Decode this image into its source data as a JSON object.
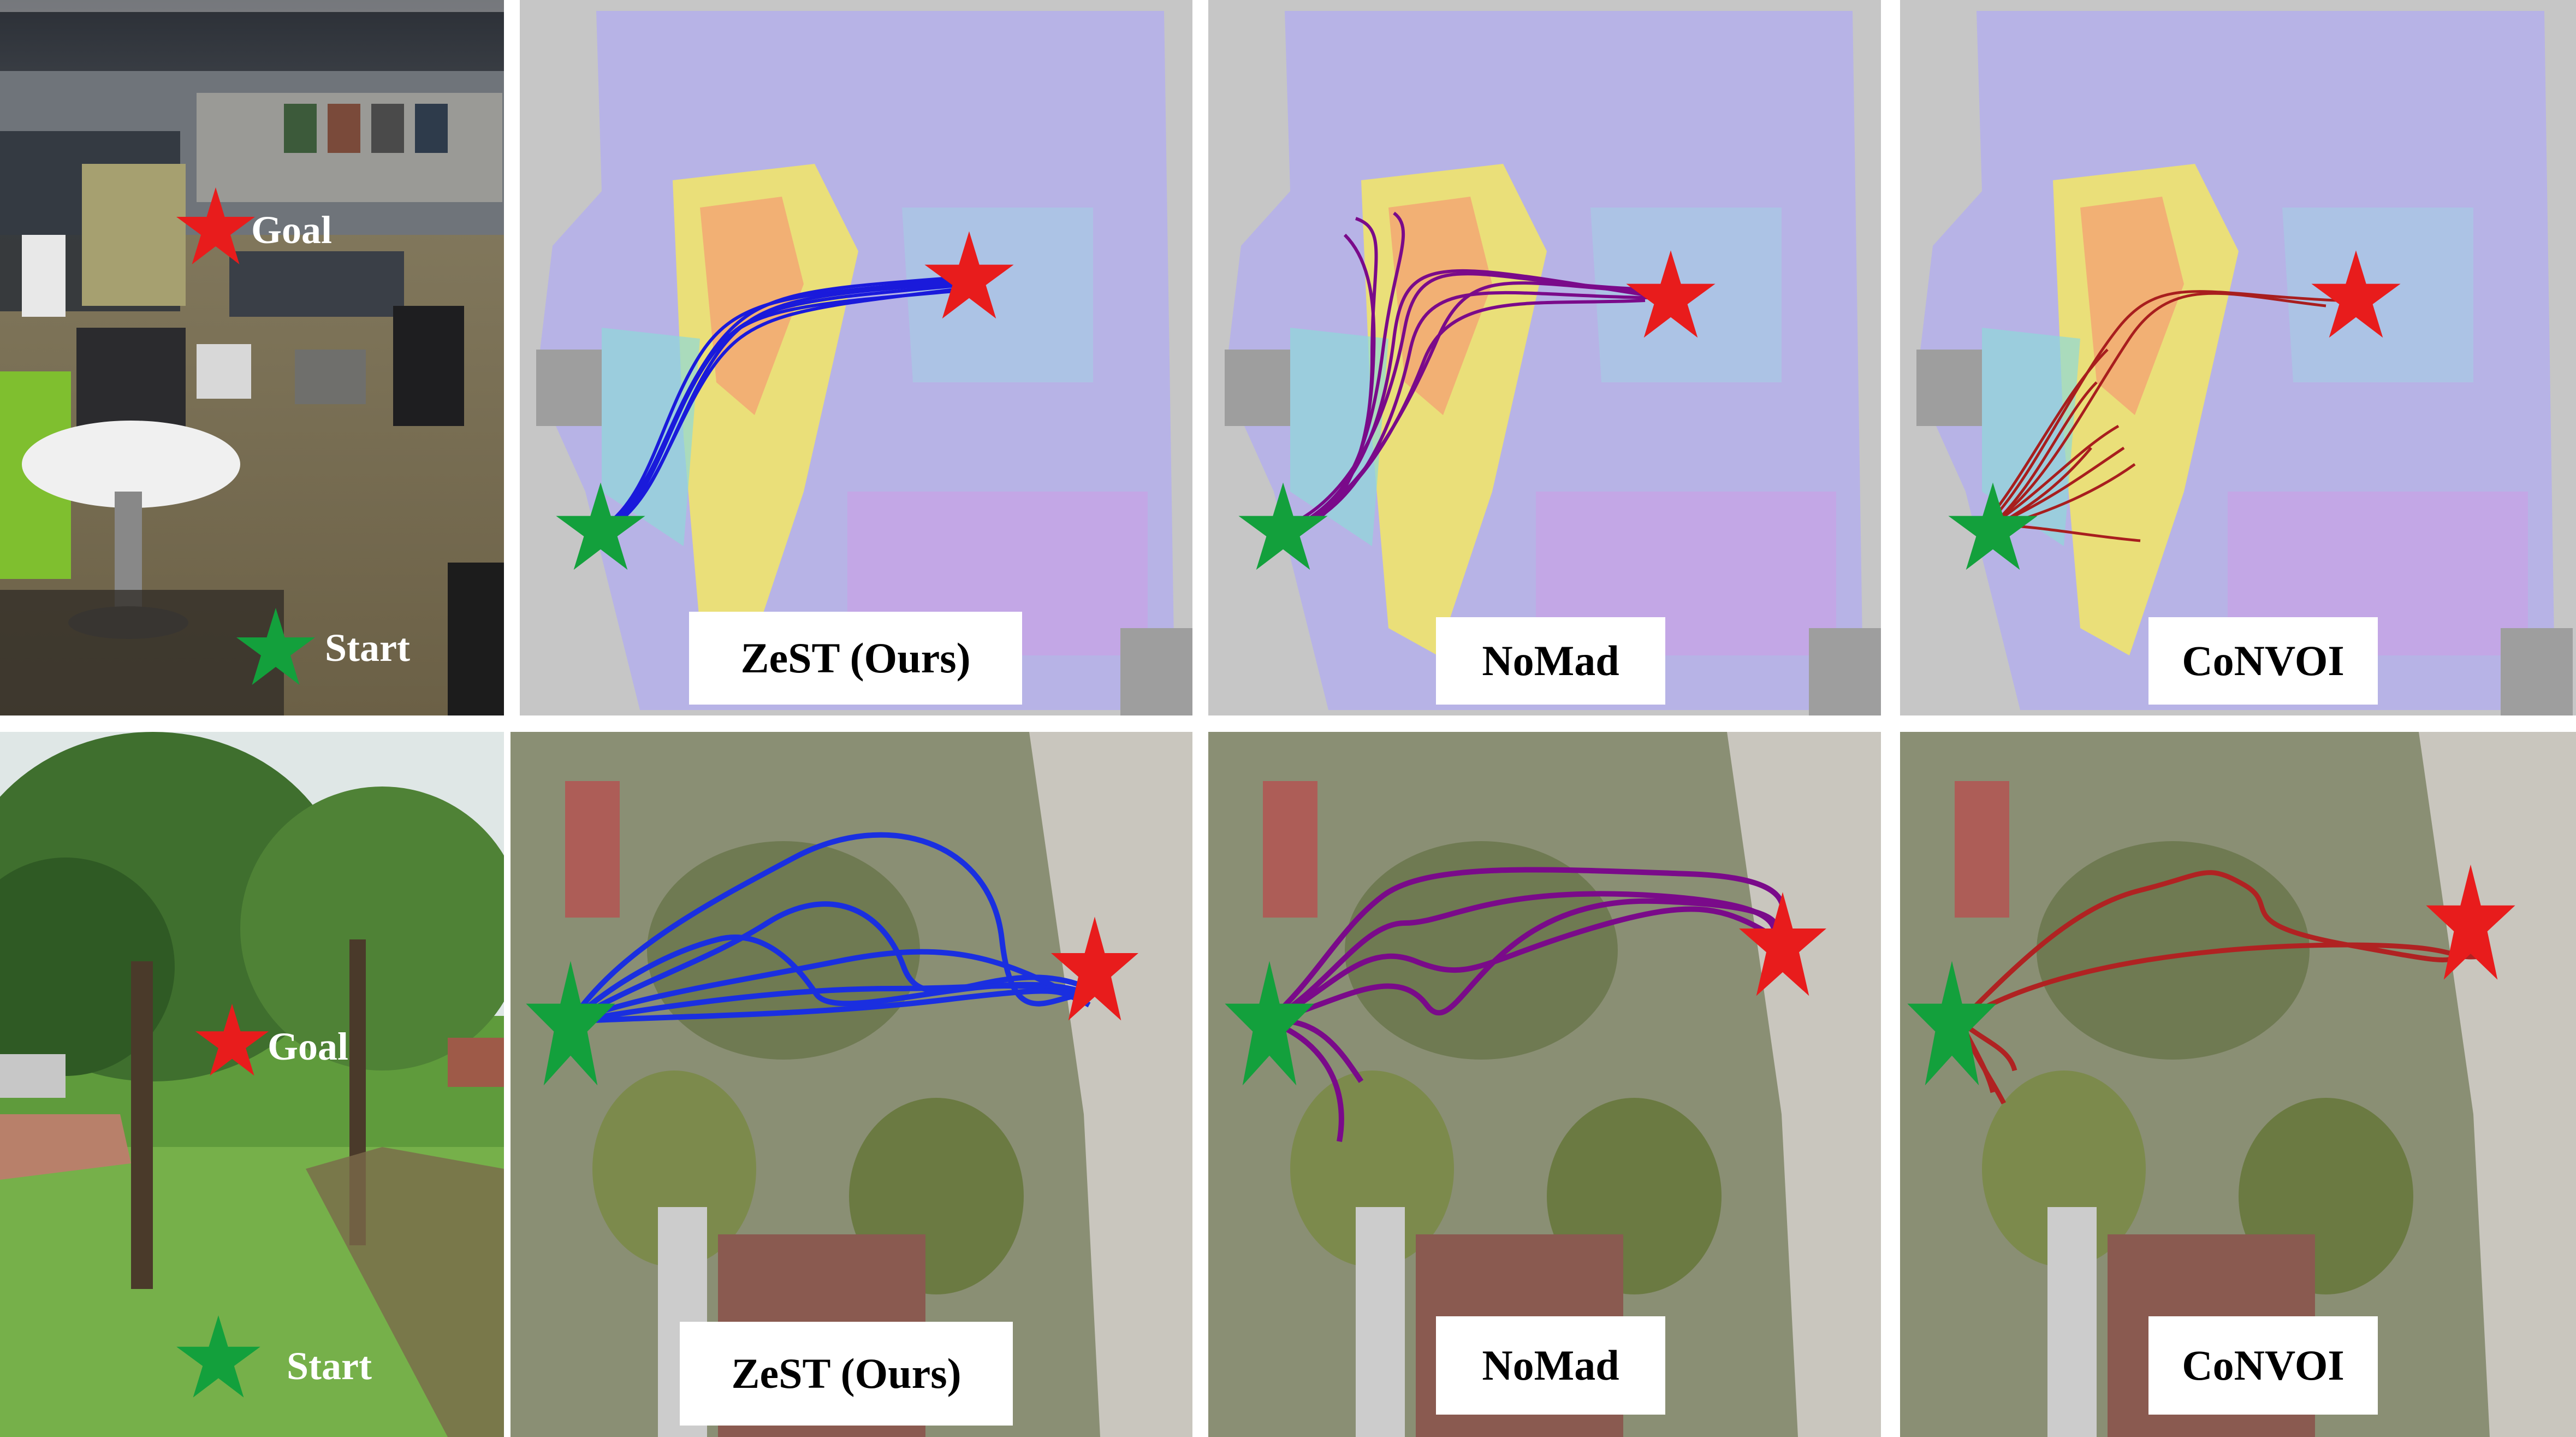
{
  "figure": {
    "rows": [
      {
        "scene": {
          "goal_label": "Goal",
          "start_label": "Start",
          "goal_label_color": "#ffffff",
          "start_label_color": "#ffffff"
        },
        "methods": [
          {
            "label": "ZeST (Ours)",
            "path_color": "#1a1adb"
          },
          {
            "label": "NoMad",
            "path_color": "#7a0a8a"
          },
          {
            "label": "CoNVOI",
            "path_color": "#a81e1e"
          }
        ]
      },
      {
        "scene": {
          "goal_label": "Goal",
          "start_label": "Start",
          "goal_label_color": "#ffffff",
          "start_label_color": "#ffffff"
        },
        "methods": [
          {
            "label": "ZeST (Ours)",
            "path_color": "#1a2fe0"
          },
          {
            "label": "NoMad",
            "path_color": "#7a0a8a"
          },
          {
            "label": "CoNVOI",
            "path_color": "#b02222"
          }
        ]
      }
    ],
    "colors": {
      "goal_star": "#e81c1c",
      "start_star": "#13a03c"
    },
    "icons": {
      "goal": "red-star-icon",
      "start": "green-star-icon"
    }
  }
}
